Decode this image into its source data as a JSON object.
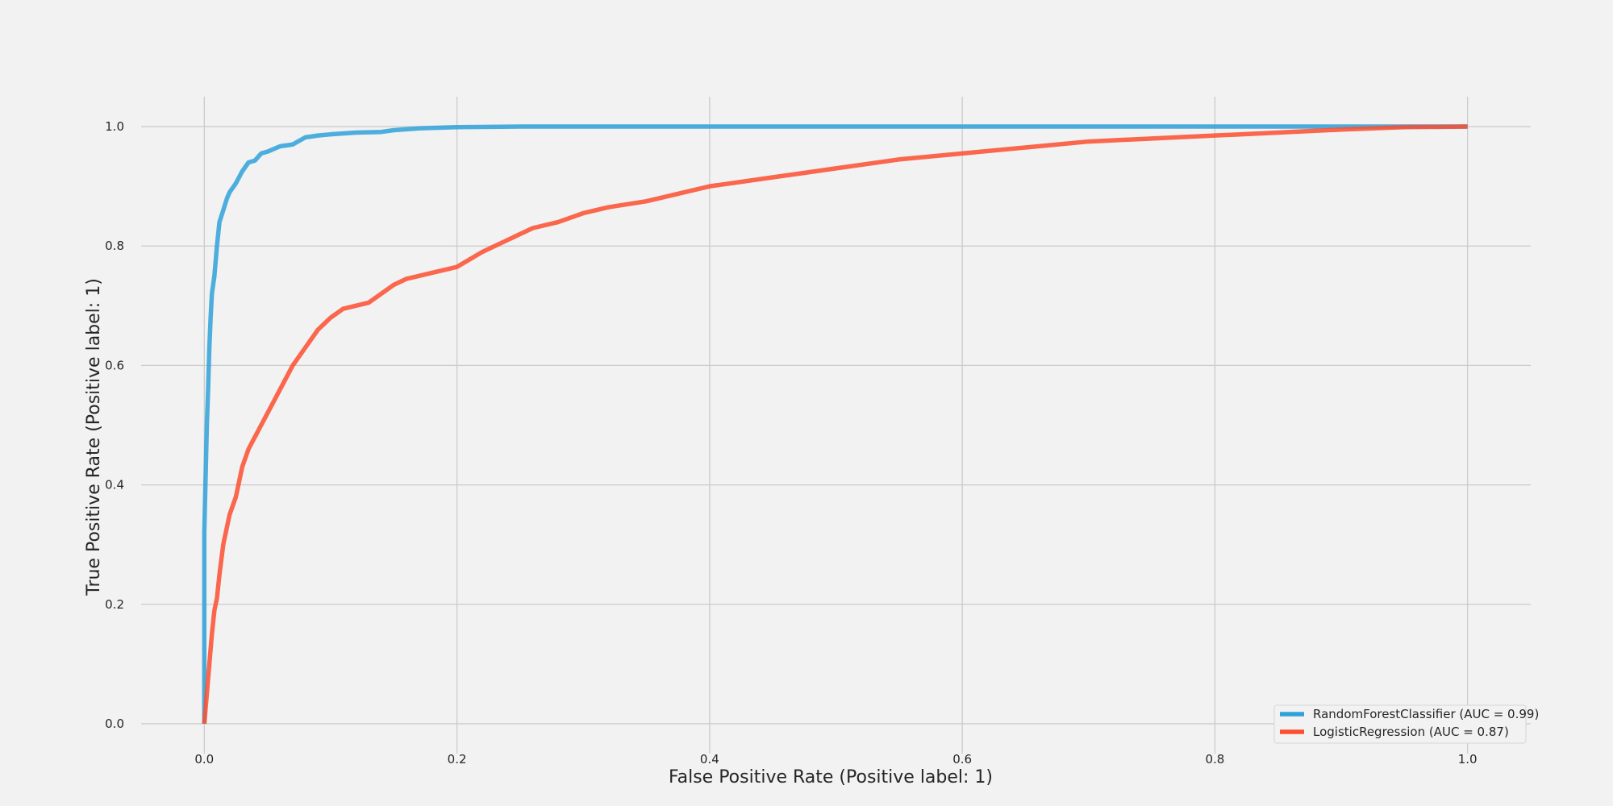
{
  "chart_data": {
    "type": "line",
    "title": "",
    "xlabel": "False Positive Rate (Positive label: 1)",
    "ylabel": "True Positive Rate (Positive label: 1)",
    "xlim": [
      -0.05,
      1.05
    ],
    "ylim": [
      -0.05,
      1.05
    ],
    "xticks": [
      0.0,
      0.2,
      0.4,
      0.6,
      0.8,
      1.0
    ],
    "yticks": [
      0.0,
      0.2,
      0.4,
      0.6,
      0.8,
      1.0
    ],
    "xtick_labels": [
      "0.0",
      "0.2",
      "0.4",
      "0.6",
      "0.8",
      "1.0"
    ],
    "ytick_labels": [
      "0.0",
      "0.2",
      "0.4",
      "0.6",
      "0.8",
      "1.0"
    ],
    "grid": true,
    "legend_position": "bottom-right",
    "series": [
      {
        "name": "RandomForestClassifier (AUC = 0.99)",
        "color": "#30a2da",
        "x": [
          0.0,
          0.0,
          0.001,
          0.002,
          0.003,
          0.004,
          0.005,
          0.006,
          0.008,
          0.01,
          0.012,
          0.015,
          0.018,
          0.02,
          0.025,
          0.03,
          0.035,
          0.04,
          0.045,
          0.05,
          0.06,
          0.07,
          0.08,
          0.09,
          0.1,
          0.12,
          0.14,
          0.15,
          0.17,
          0.2,
          0.25,
          0.4,
          0.6,
          0.8,
          1.0
        ],
        "y": [
          0.0,
          0.32,
          0.41,
          0.5,
          0.56,
          0.63,
          0.68,
          0.72,
          0.75,
          0.8,
          0.84,
          0.86,
          0.88,
          0.89,
          0.905,
          0.925,
          0.94,
          0.943,
          0.955,
          0.958,
          0.967,
          0.97,
          0.982,
          0.985,
          0.987,
          0.99,
          0.991,
          0.994,
          0.997,
          0.999,
          1.0,
          1.0,
          1.0,
          1.0,
          1.0
        ]
      },
      {
        "name": "LogisticRegression (AUC = 0.87)",
        "color": "#fc4f30",
        "x": [
          0.0,
          0.002,
          0.004,
          0.006,
          0.008,
          0.01,
          0.012,
          0.015,
          0.018,
          0.02,
          0.025,
          0.03,
          0.035,
          0.04,
          0.045,
          0.05,
          0.055,
          0.06,
          0.07,
          0.08,
          0.09,
          0.1,
          0.11,
          0.12,
          0.13,
          0.14,
          0.15,
          0.16,
          0.18,
          0.2,
          0.22,
          0.24,
          0.26,
          0.28,
          0.3,
          0.32,
          0.35,
          0.38,
          0.4,
          0.45,
          0.5,
          0.55,
          0.6,
          0.65,
          0.7,
          0.75,
          0.8,
          0.85,
          0.9,
          0.95,
          1.0
        ],
        "y": [
          0.0,
          0.05,
          0.1,
          0.15,
          0.19,
          0.21,
          0.25,
          0.3,
          0.33,
          0.35,
          0.38,
          0.43,
          0.46,
          0.48,
          0.5,
          0.52,
          0.54,
          0.56,
          0.6,
          0.63,
          0.66,
          0.68,
          0.695,
          0.7,
          0.705,
          0.72,
          0.735,
          0.745,
          0.755,
          0.765,
          0.79,
          0.81,
          0.83,
          0.84,
          0.855,
          0.865,
          0.875,
          0.89,
          0.9,
          0.915,
          0.93,
          0.945,
          0.955,
          0.965,
          0.975,
          0.98,
          0.985,
          0.99,
          0.995,
          0.999,
          1.0
        ]
      }
    ]
  }
}
